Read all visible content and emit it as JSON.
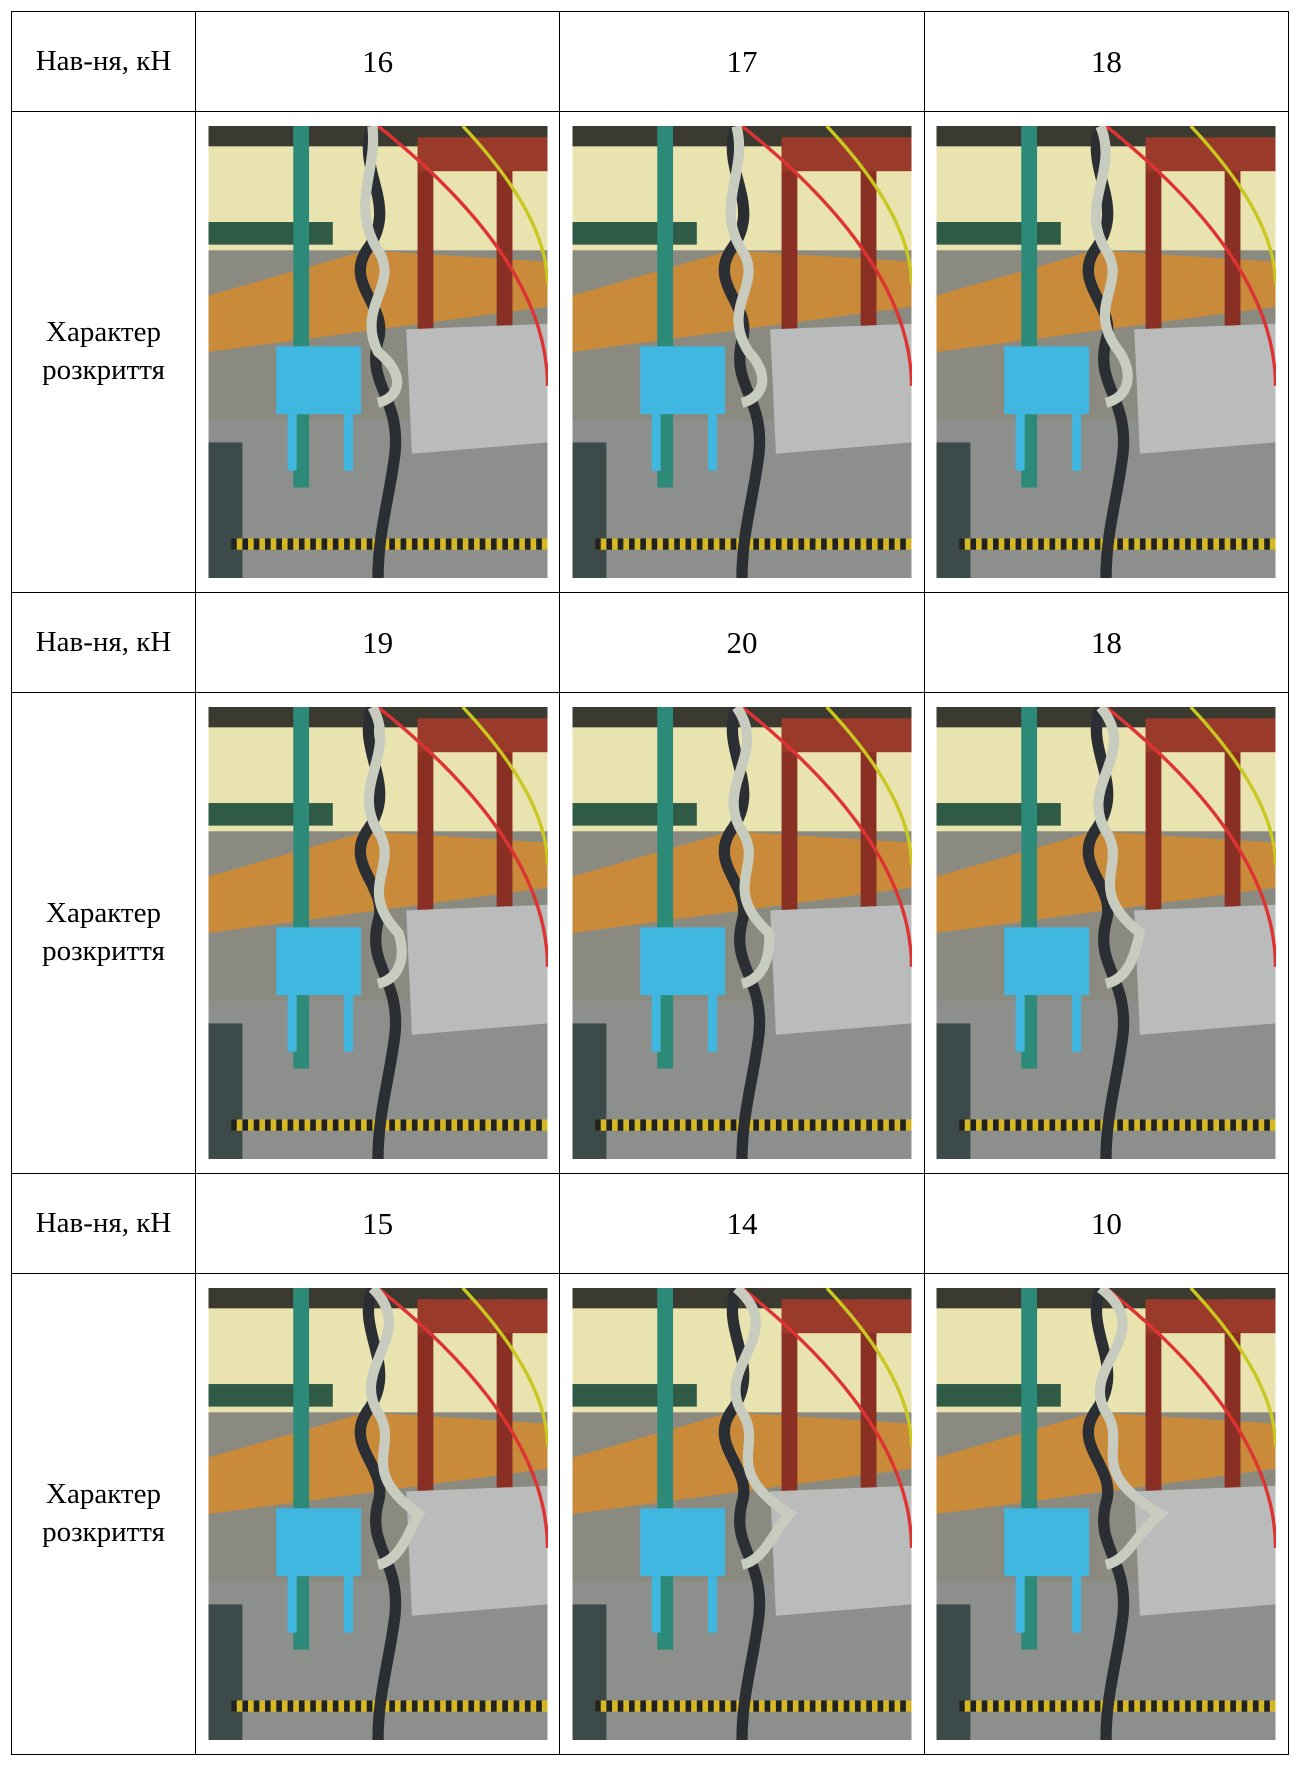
{
  "table": {
    "rows": [
      {
        "load_label": "Нав-ня, кН",
        "loads": [
          16,
          17,
          18
        ],
        "photo_label": "Характер розкриття"
      },
      {
        "load_label": "Нав-ня, кН",
        "loads": [
          19,
          20,
          18
        ],
        "photo_label": "Характер розкриття"
      },
      {
        "load_label": "Нав-ня, кН",
        "loads": [
          15,
          14,
          10
        ],
        "photo_label": "Характер розкриття"
      }
    ]
  }
}
